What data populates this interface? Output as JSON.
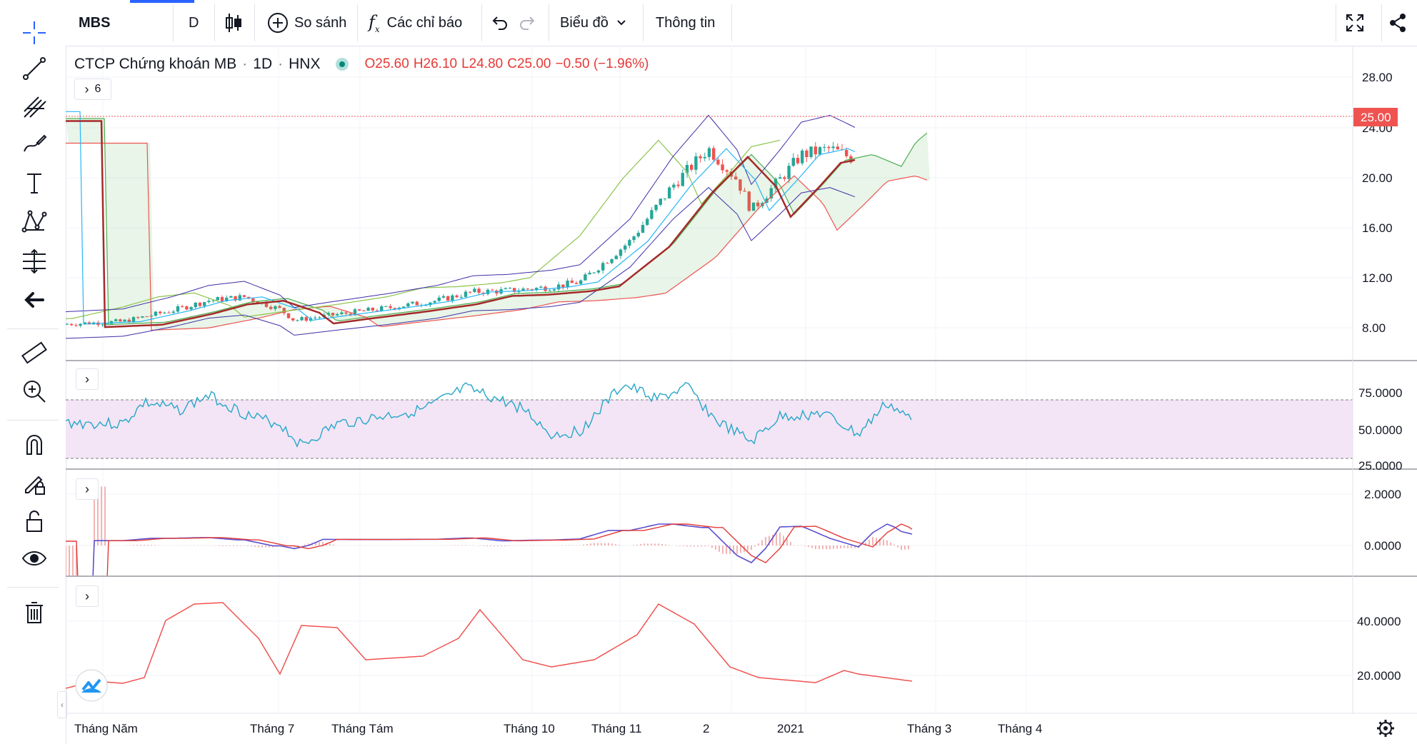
{
  "toolbar": {
    "symbol": "MBS",
    "interval": "D",
    "compare_label": "So sánh",
    "indicators_label": "Các chỉ báo",
    "chart_type_label": "Biểu đồ",
    "info_label": "Thông tin"
  },
  "legend": {
    "name": "CTCP Chứng khoán MB",
    "interval": "1D",
    "exchange": "HNX",
    "open": "O25.60",
    "high": "H26.10",
    "low": "L24.80",
    "close": "C25.00",
    "change": "−0.50 (−1.96%)",
    "collapsed_count": "6"
  },
  "colors": {
    "up": "#26a69a",
    "down": "#ef5350",
    "price_tag": "#ef5350",
    "rsi_band": "#f3e5f5"
  },
  "price_axis": {
    "ticks": [
      "28.00",
      "24.00",
      "20.00",
      "16.00",
      "12.00",
      "8.00"
    ],
    "current_price": "25.00"
  },
  "rsi_axis": {
    "ticks": [
      "75.0000",
      "50.0000",
      "25.0000"
    ]
  },
  "macd_axis": {
    "ticks": [
      "2.0000",
      "0.0000"
    ]
  },
  "adx_axis": {
    "ticks": [
      "40.0000",
      "20.0000"
    ]
  },
  "time_axis": [
    "Tháng Năm",
    "Tháng 7",
    "Tháng Tám",
    "Tháng 10",
    "Tháng 11",
    "2",
    "2021",
    "Tháng 3",
    "Tháng 4"
  ],
  "icons": {
    "left_tools": [
      "crosshair-icon",
      "trend-line-icon",
      "pitchfork-icon",
      "brush-icon",
      "text-icon",
      "pattern-icon",
      "prediction-icon",
      "back-arrow-icon",
      "ruler-icon",
      "zoom-in-icon",
      "magnet-icon",
      "lock-drawing-icon",
      "unlock-icon",
      "eye-icon",
      "trash-icon"
    ]
  }
}
